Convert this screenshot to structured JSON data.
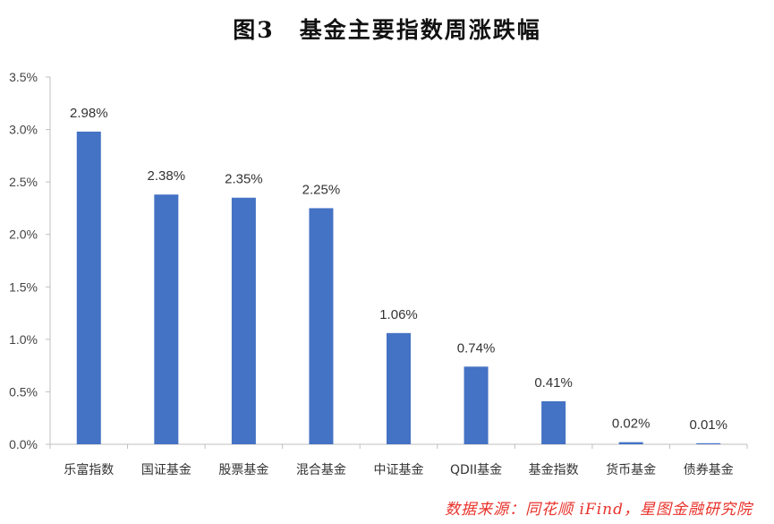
{
  "figure": {
    "number": "图3",
    "title": "基金主要指数周涨跌幅"
  },
  "source": "数据来源：同花顺 iFind，星图金融研究院",
  "colors": {
    "bar": "#4472c4",
    "axis": "#bfbfbf",
    "source_text": "#e8322b"
  },
  "chart_data": {
    "type": "bar",
    "title": "基金主要指数周涨跌幅",
    "xlabel": "",
    "ylabel": "",
    "categories": [
      "乐富指数",
      "国证基金",
      "股票基金",
      "混合基金",
      "中证基金",
      "QDII基金",
      "基金指数",
      "货币基金",
      "债券基金"
    ],
    "values": [
      2.98,
      2.38,
      2.35,
      2.25,
      1.06,
      0.74,
      0.41,
      0.02,
      0.01
    ],
    "data_labels": [
      "2.98%",
      "2.38%",
      "2.35%",
      "2.25%",
      "1.06%",
      "0.74%",
      "0.41%",
      "0.02%",
      "0.01%"
    ],
    "ylim": [
      0,
      3.5
    ],
    "y_ticks": [
      0,
      0.5,
      1.0,
      1.5,
      2.0,
      2.5,
      3.0,
      3.5
    ],
    "y_tick_labels": [
      "0.0%",
      "0.5%",
      "1.0%",
      "1.5%",
      "2.0%",
      "2.5%",
      "3.0%",
      "3.5%"
    ],
    "grid": false,
    "legend": "none"
  }
}
